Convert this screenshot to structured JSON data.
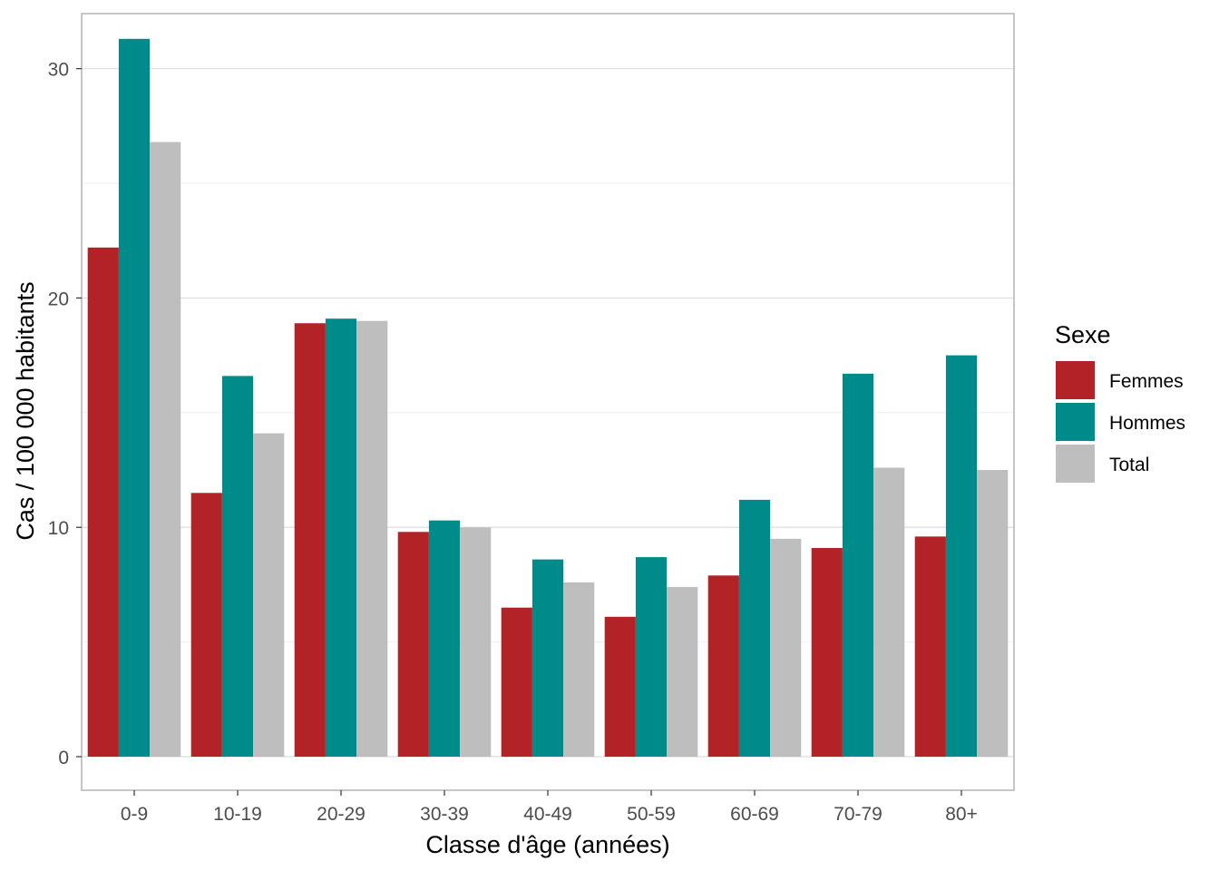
{
  "chart_data": {
    "type": "bar",
    "xlabel": "Classe d'âge (années)",
    "ylabel": "Cas / 100 000 habitants",
    "categories": [
      "0-9",
      "10-19",
      "20-29",
      "30-39",
      "40-49",
      "50-59",
      "60-69",
      "70-79",
      "80+"
    ],
    "series": [
      {
        "name": "Femmes",
        "color": "#b22226",
        "values": [
          22.2,
          11.5,
          18.9,
          9.8,
          6.5,
          6.1,
          7.9,
          9.1,
          9.6
        ]
      },
      {
        "name": "Hommes",
        "color": "#008b8b",
        "values": [
          31.3,
          16.6,
          19.1,
          10.3,
          8.6,
          8.7,
          11.2,
          16.7,
          17.5
        ]
      },
      {
        "name": "Total",
        "color": "#bebebe",
        "values": [
          26.8,
          14.1,
          19.0,
          10.0,
          7.6,
          7.4,
          9.5,
          12.6,
          12.5
        ]
      }
    ],
    "ylim": [
      0,
      32.4
    ],
    "yticks": [
      0,
      10,
      20,
      30
    ],
    "grid": true,
    "legend": {
      "title": "Sexe",
      "position": "right"
    }
  }
}
